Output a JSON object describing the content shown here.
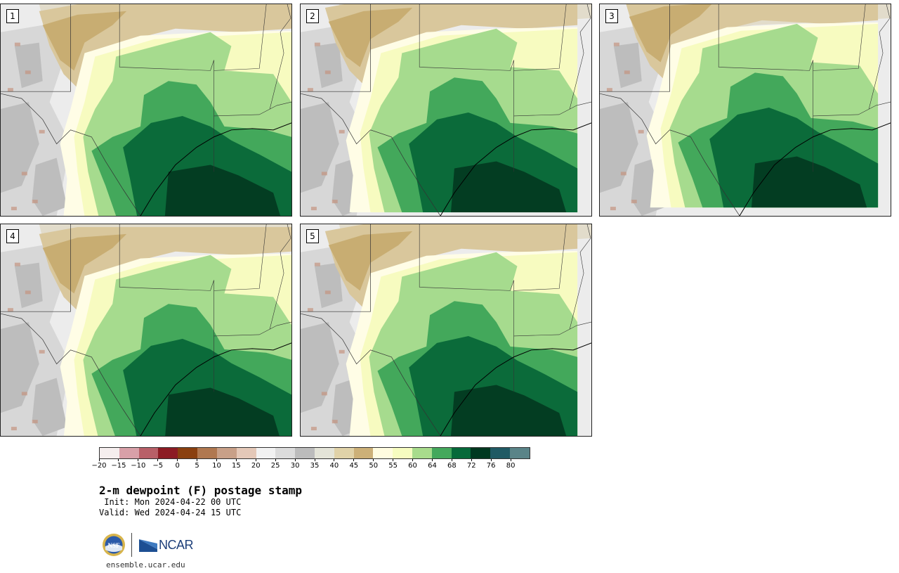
{
  "panels": [
    {
      "label": "1"
    },
    {
      "label": "2"
    },
    {
      "label": "3"
    },
    {
      "label": "4"
    },
    {
      "label": "5"
    }
  ],
  "colorbar": {
    "colors": [
      "#f5eeee",
      "#d8a0a8",
      "#b86068",
      "#8c1c24",
      "#8a4010",
      "#b07850",
      "#c8a088",
      "#e4c8b8",
      "#f2f2f2",
      "#dcdcdc",
      "#bcbcbc",
      "#e4e4d8",
      "#e0d2a8",
      "#ccb078",
      "#fffce0",
      "#f6fcc0",
      "#a8dc8c",
      "#44a85c",
      "#06693a",
      "#003820",
      "#205a64",
      "#5a8488"
    ],
    "tick_labels": [
      "−20",
      "−15",
      "−10",
      "−5",
      "0",
      "5",
      "10",
      "15",
      "20",
      "25",
      "30",
      "35",
      "40",
      "45",
      "50",
      "55",
      "60",
      "64",
      "68",
      "72",
      "76",
      "80"
    ]
  },
  "title": "2-m dewpoint (F) postage stamp",
  "init": " Init: Mon 2024-04-22 00 UTC",
  "valid": "Valid: Wed 2024-04-24 15 UTC",
  "logo_text": "NCAR",
  "nsf_text": "NSF",
  "url": "ensemble.ucar.edu"
}
